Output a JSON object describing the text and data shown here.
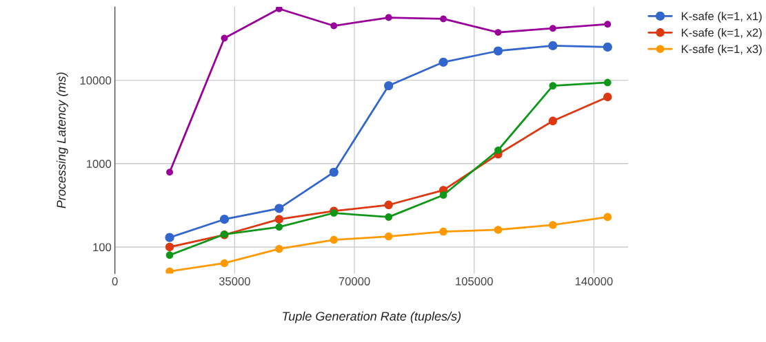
{
  "chart_data": {
    "type": "line",
    "xlabel": "Tuple Generation Rate (tuples/s)",
    "ylabel": "Processing Latency (ms)",
    "x": [
      16000,
      32000,
      48000,
      64000,
      80000,
      96000,
      112000,
      128000,
      144000
    ],
    "series": [
      {
        "name": "K-safe (k=1, x1)",
        "color": "#3366cc",
        "values": [
          130,
          215,
          290,
          790,
          8600,
          16500,
          22500,
          26000,
          25000
        ]
      },
      {
        "name": "K-safe (k=1, x2)",
        "color": "#dc3912",
        "values": [
          100,
          140,
          215,
          270,
          320,
          480,
          1300,
          3250,
          6300
        ]
      },
      {
        "name": "K-safe (k=1, x3)",
        "color": "#ff9900",
        "values": [
          51,
          64,
          95,
          122,
          134,
          153,
          161,
          184,
          229
        ]
      },
      {
        "color": "#109618",
        "values": [
          80,
          142,
          174,
          256,
          229,
          420,
          1450,
          8600,
          9400
        ]
      },
      {
        "color": "#990099",
        "values": [
          790,
          32000,
          72000,
          45000,
          56500,
          54500,
          37500,
          42000,
          47000
        ]
      }
    ],
    "log": "y",
    "xlim": [
      0,
      150000
    ],
    "ylim": [
      48,
      76000
    ],
    "xticks": [
      0,
      35000,
      70000,
      105000,
      140000
    ],
    "yticks": [
      100,
      1000,
      10000
    ],
    "grid": true,
    "legend": "top right",
    "marker": "circle",
    "line_style": "solid"
  }
}
